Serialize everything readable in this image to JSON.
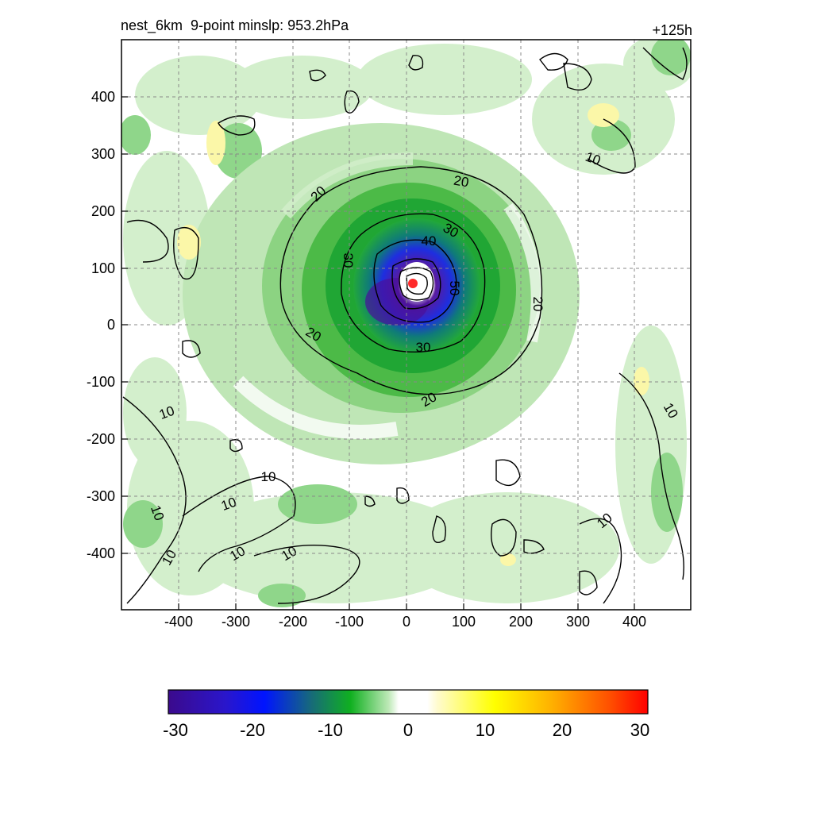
{
  "title": {
    "left": "nest_6km  9-point minslp: 953.2hPa",
    "right": "+125h"
  },
  "axes": {
    "x_ticks": [
      "-400",
      "-300",
      "-200",
      "-100",
      "0",
      "100",
      "200",
      "300",
      "400"
    ],
    "y_ticks": [
      "400",
      "300",
      "200",
      "100",
      "0",
      "-100",
      "-200",
      "-300",
      "-400"
    ],
    "grid": "dashed"
  },
  "contour_labels": [
    {
      "text": "20"
    },
    {
      "text": "20"
    },
    {
      "text": "20"
    },
    {
      "text": "20"
    },
    {
      "text": "20"
    },
    {
      "text": "30"
    },
    {
      "text": "30"
    },
    {
      "text": "30"
    },
    {
      "text": "40"
    },
    {
      "text": "50"
    },
    {
      "text": "10"
    },
    {
      "text": "10"
    },
    {
      "text": "10"
    },
    {
      "text": "10"
    },
    {
      "text": "10"
    },
    {
      "text": "10"
    },
    {
      "text": "10"
    },
    {
      "text": "10"
    },
    {
      "text": "10"
    },
    {
      "text": "10"
    }
  ],
  "colorbar": {
    "min": -30,
    "max": 30,
    "tick_labels": [
      "-30",
      "-20",
      "-10",
      "0",
      "10",
      "20",
      "30"
    ]
  },
  "center_marker": {
    "color": "#ff2a2a"
  },
  "colors": {
    "green_light": "#d9f2d4",
    "green_mid": "#a9e09d",
    "green": "#4fbf4c",
    "green_dark": "#1aa52a",
    "teal": "#137a5a",
    "blue": "#1a33e6",
    "purple": "#4a0f9a",
    "yellow": "#fbf7a8"
  }
}
